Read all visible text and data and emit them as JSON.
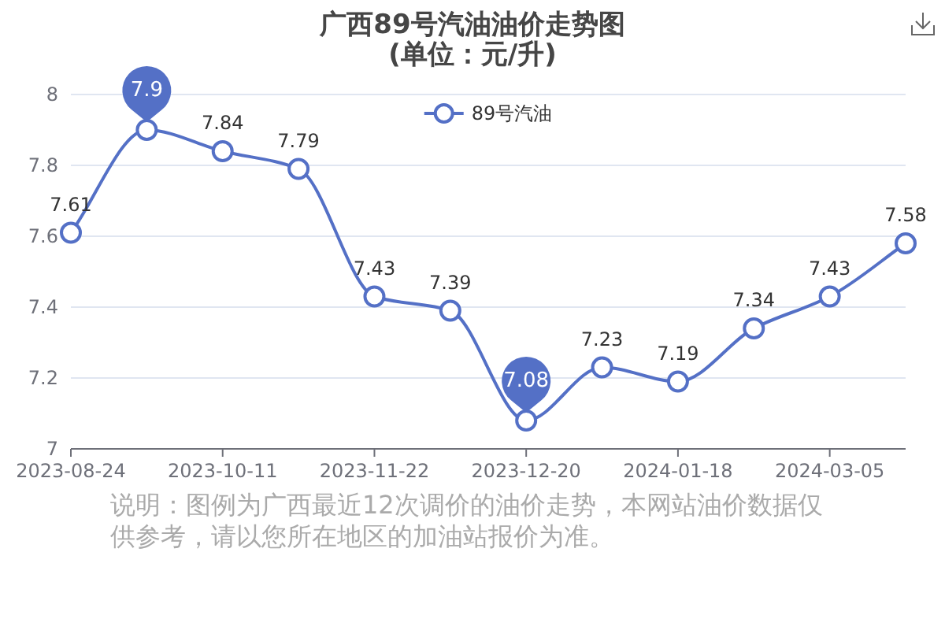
{
  "chart_data": {
    "type": "line",
    "title": "广西89号汽油油价走势图",
    "subtitle": "(单位：元/升)",
    "categories": [
      "2023-08-24",
      null,
      "2023-10-11",
      null,
      "2023-11-22",
      null,
      "2023-12-20",
      null,
      "2024-01-18",
      null,
      "2024-03-05",
      null
    ],
    "series": [
      {
        "name": "89号汽油",
        "color": "#5470c6",
        "values": [
          7.61,
          7.9,
          7.84,
          7.79,
          7.43,
          7.39,
          7.08,
          7.23,
          7.19,
          7.34,
          7.43,
          7.58
        ],
        "value_labels": [
          "7.61",
          null,
          "7.84",
          "7.79",
          "7.43",
          "7.39",
          null,
          "7.23",
          "7.19",
          "7.34",
          "7.43",
          "7.58"
        ]
      }
    ],
    "ylim": [
      7,
      8
    ],
    "yticks": [
      7,
      7.2,
      7.4,
      7.6,
      7.8,
      8
    ],
    "grid": "y",
    "legend": "top",
    "marker": "circle",
    "line_style": "solid",
    "annotations": [
      {
        "text": "7.9",
        "y": 7.9
      },
      {
        "text": "7.08",
        "x": "2023-12-20",
        "y": 7.08
      },
      "说明：图例为广西最近12次调价的油价走势，本网站油价数据仅供参考，请以您所在地区的加油站报价为准。"
    ]
  }
}
